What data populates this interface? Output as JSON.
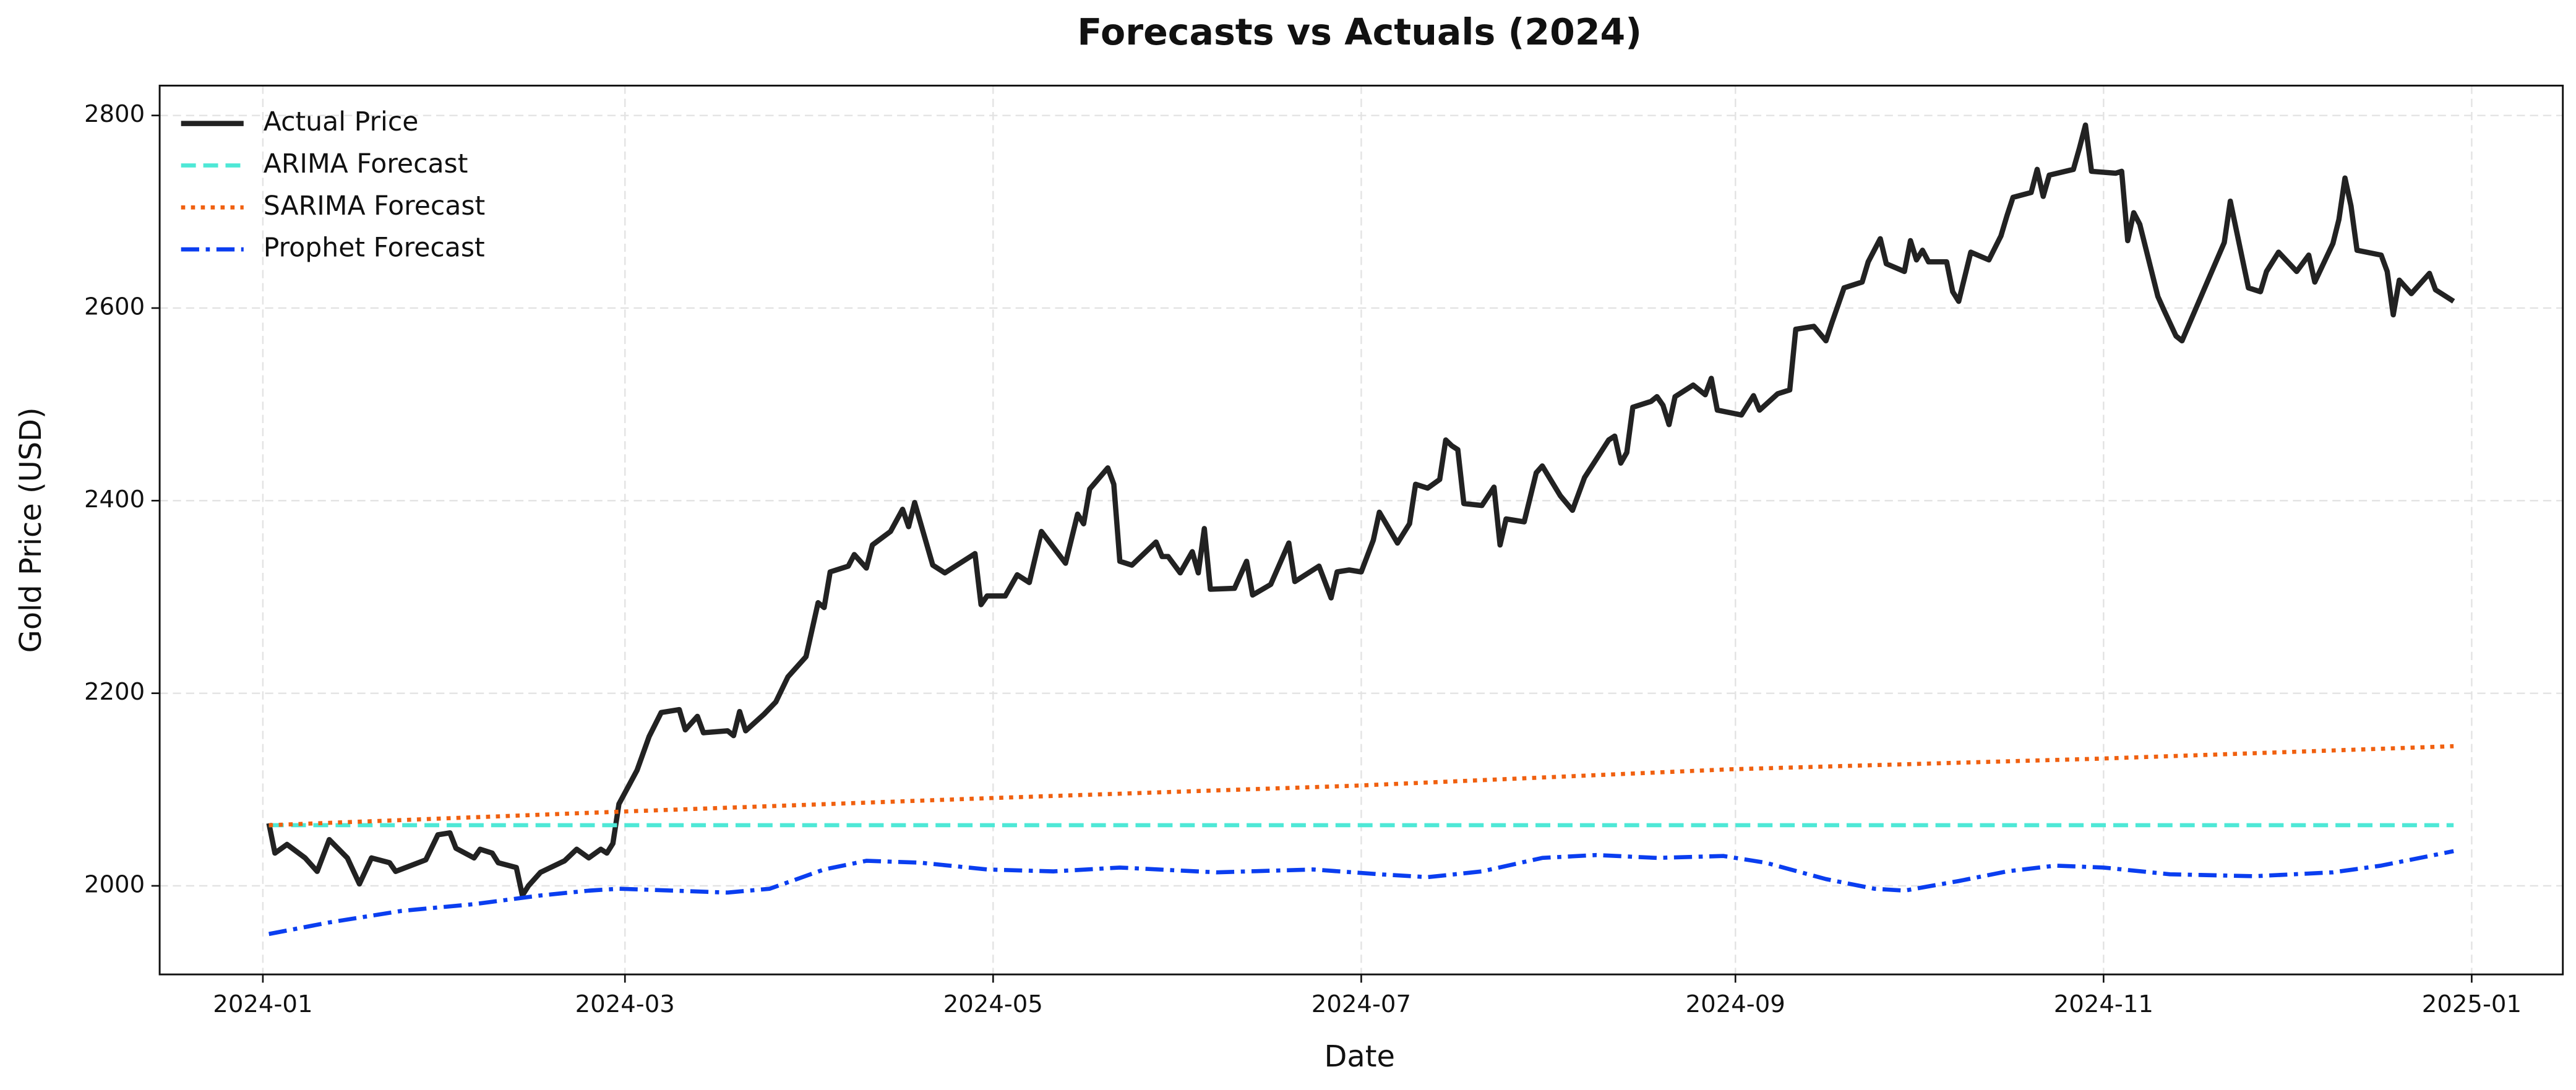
{
  "chart_data": {
    "type": "line",
    "title": "Forecasts vs Actuals (2024)",
    "title_color": "#e8cc26",
    "xlabel": "Date",
    "ylabel": "Gold Price (USD)",
    "grid": true,
    "legend": "upper left",
    "ylim": [
      1908,
      2831
    ],
    "yticks": [
      2000,
      2200,
      2400,
      2600,
      2800
    ],
    "xticks": [
      "2024-01",
      "2024-03",
      "2024-05",
      "2024-07",
      "2024-09",
      "2024-11",
      "2025-01"
    ],
    "series": [
      {
        "name": "Actual Price",
        "color": "#222222",
        "linestyle": "solid",
        "x": [
          "2024-01-02",
          "2024-01-03",
          "2024-01-05",
          "2024-01-08",
          "2024-01-10",
          "2024-01-12",
          "2024-01-15",
          "2024-01-17",
          "2024-01-19",
          "2024-01-22",
          "2024-01-23",
          "2024-01-28",
          "2024-01-30",
          "2024-02-01",
          "2024-02-02",
          "2024-02-05",
          "2024-02-06",
          "2024-02-08",
          "2024-02-09",
          "2024-02-12",
          "2024-02-13",
          "2024-02-14",
          "2024-02-16",
          "2024-02-20",
          "2024-02-22",
          "2024-02-24",
          "2024-02-26",
          "2024-02-27",
          "2024-02-28",
          "2024-02-29",
          "2024-03-03",
          "2024-03-05",
          "2024-03-07",
          "2024-03-10",
          "2024-03-11",
          "2024-03-13",
          "2024-03-14",
          "2024-03-18",
          "2024-03-19",
          "2024-03-20",
          "2024-03-21",
          "2024-03-24",
          "2024-03-26",
          "2024-03-28",
          "2024-03-31",
          "2024-04-02",
          "2024-04-03",
          "2024-04-04",
          "2024-04-07",
          "2024-04-08",
          "2024-04-10",
          "2024-04-11",
          "2024-04-14",
          "2024-04-16",
          "2024-04-17",
          "2024-04-18",
          "2024-04-21",
          "2024-04-23",
          "2024-04-28",
          "2024-04-29",
          "2024-04-30",
          "2024-05-03",
          "2024-05-05",
          "2024-05-07",
          "2024-05-09",
          "2024-05-13",
          "2024-05-15",
          "2024-05-16",
          "2024-05-17",
          "2024-05-20",
          "2024-05-21",
          "2024-05-22",
          "2024-05-24",
          "2024-05-28",
          "2024-05-29",
          "2024-05-30",
          "2024-06-01",
          "2024-06-03",
          "2024-06-04",
          "2024-06-05",
          "2024-06-06",
          "2024-06-10",
          "2024-06-12",
          "2024-06-13",
          "2024-06-16",
          "2024-06-19",
          "2024-06-20",
          "2024-06-24",
          "2024-06-26",
          "2024-06-27",
          "2024-06-29",
          "2024-07-01",
          "2024-07-03",
          "2024-07-04",
          "2024-07-07",
          "2024-07-09",
          "2024-07-10",
          "2024-07-12",
          "2024-07-14",
          "2024-07-15",
          "2024-07-16",
          "2024-07-17",
          "2024-07-18",
          "2024-07-21",
          "2024-07-23",
          "2024-07-24",
          "2024-07-25",
          "2024-07-28",
          "2024-07-30",
          "2024-07-31",
          "2024-08-03",
          "2024-08-05",
          "2024-08-07",
          "2024-08-11",
          "2024-08-12",
          "2024-08-13",
          "2024-08-14",
          "2024-08-15",
          "2024-08-18",
          "2024-08-19",
          "2024-08-20",
          "2024-08-21",
          "2024-08-22",
          "2024-08-25",
          "2024-08-27",
          "2024-08-28",
          "2024-08-29",
          "2024-09-02",
          "2024-09-04",
          "2024-09-05",
          "2024-09-08",
          "2024-09-10",
          "2024-09-11",
          "2024-09-14",
          "2024-09-16",
          "2024-09-17",
          "2024-09-19",
          "2024-09-22",
          "2024-09-23",
          "2024-09-25",
          "2024-09-26",
          "2024-09-29",
          "2024-09-30",
          "2024-10-01",
          "2024-10-02",
          "2024-10-03",
          "2024-10-06",
          "2024-10-07",
          "2024-10-08",
          "2024-10-10",
          "2024-10-13",
          "2024-10-15",
          "2024-10-16",
          "2024-10-17",
          "2024-10-20",
          "2024-10-21",
          "2024-10-22",
          "2024-10-23",
          "2024-10-27",
          "2024-10-28",
          "2024-10-29",
          "2024-10-30",
          "2024-11-03",
          "2024-11-04",
          "2024-11-05",
          "2024-11-06",
          "2024-11-07",
          "2024-11-10",
          "2024-11-11",
          "2024-11-13",
          "2024-11-14",
          "2024-11-19",
          "2024-11-21",
          "2024-11-22",
          "2024-11-25",
          "2024-11-27",
          "2024-11-28",
          "2024-11-30",
          "2024-12-03",
          "2024-12-05",
          "2024-12-06",
          "2024-12-09",
          "2024-12-10",
          "2024-12-11",
          "2024-12-12",
          "2024-12-13",
          "2024-12-17",
          "2024-12-18",
          "2024-12-19",
          "2024-12-20",
          "2024-12-22",
          "2024-12-25",
          "2024-12-26",
          "2024-12-29"
        ],
        "values": [
          2065,
          2034,
          2043,
          2029,
          2015,
          2048,
          2029,
          2002,
          2029,
          2024,
          2015,
          2027,
          2053,
          2055,
          2039,
          2029,
          2038,
          2034,
          2024,
          2019,
          1990,
          2000,
          2014,
          2026,
          2038,
          2029,
          2038,
          2034,
          2044,
          2085,
          2120,
          2155,
          2180,
          2183,
          2162,
          2176,
          2159,
          2161,
          2156,
          2181,
          2161,
          2178,
          2191,
          2217,
          2238,
          2294,
          2289,
          2326,
          2332,
          2344,
          2330,
          2354,
          2368,
          2391,
          2373,
          2398,
          2333,
          2325,
          2345,
          2292,
          2301,
          2301,
          2323,
          2315,
          2368,
          2335,
          2386,
          2376,
          2412,
          2434,
          2417,
          2337,
          2333,
          2357,
          2342,
          2342,
          2325,
          2347,
          2325,
          2371,
          2308,
          2309,
          2337,
          2302,
          2313,
          2356,
          2316,
          2332,
          2299,
          2326,
          2328,
          2326,
          2359,
          2388,
          2356,
          2376,
          2417,
          2413,
          2422,
          2463,
          2457,
          2453,
          2397,
          2395,
          2414,
          2354,
          2381,
          2378,
          2429,
          2436,
          2405,
          2390,
          2424,
          2463,
          2467,
          2439,
          2450,
          2497,
          2503,
          2508,
          2499,
          2479,
          2508,
          2520,
          2510,
          2527,
          2494,
          2489,
          2509,
          2494,
          2511,
          2515,
          2578,
          2581,
          2566,
          2585,
          2621,
          2627,
          2648,
          2672,
          2646,
          2638,
          2670,
          2650,
          2660,
          2648,
          2648,
          2617,
          2607,
          2658,
          2650,
          2675,
          2696,
          2715,
          2720,
          2744,
          2716,
          2738,
          2744,
          2766,
          2790,
          2742,
          2740,
          2742,
          2670,
          2699,
          2687,
          2612,
          2598,
          2571,
          2566,
          2639,
          2668,
          2711,
          2621,
          2617,
          2638,
          2658,
          2638,
          2655,
          2627,
          2667,
          2692,
          2735,
          2706,
          2660,
          2655,
          2638,
          2593,
          2629,
          2615,
          2636,
          2619,
          2607
        ]
      },
      {
        "name": "ARIMA Forecast",
        "color": "#4ee8d6",
        "linestyle": "dashed",
        "x": [
          "2024-01-02",
          "2024-12-29"
        ],
        "values": [
          2063,
          2063
        ]
      },
      {
        "name": "SARIMA Forecast",
        "color": "#f0600f",
        "linestyle": "dotted",
        "x": [
          "2024-01-02",
          "2024-02-29",
          "2024-04-30",
          "2024-06-30",
          "2024-08-31",
          "2024-10-31",
          "2024-12-29"
        ],
        "values": [
          2063,
          2077,
          2091,
          2104,
          2121,
          2132,
          2145
        ]
      },
      {
        "name": "Prophet Forecast",
        "color": "#0a3ef0",
        "linestyle": "dashdot",
        "x": [
          "2024-01-02",
          "2024-01-12",
          "2024-01-24",
          "2024-02-05",
          "2024-02-16",
          "2024-02-24",
          "2024-02-29",
          "2024-03-18",
          "2024-03-25",
          "2024-04-03",
          "2024-04-10",
          "2024-04-19",
          "2024-04-30",
          "2024-05-11",
          "2024-05-22",
          "2024-06-07",
          "2024-06-23",
          "2024-07-04",
          "2024-07-12",
          "2024-07-21",
          "2024-07-31",
          "2024-08-09",
          "2024-08-19",
          "2024-08-30",
          "2024-09-06",
          "2024-09-16",
          "2024-09-24",
          "2024-09-29",
          "2024-10-08",
          "2024-10-16",
          "2024-10-24",
          "2024-11-01",
          "2024-11-12",
          "2024-11-26",
          "2024-12-09",
          "2024-12-17",
          "2024-12-29"
        ],
        "values": [
          1950,
          1962,
          1974,
          1981,
          1990,
          1995,
          1997,
          1993,
          1997,
          2017,
          2026,
          2024,
          2017,
          2015,
          2019,
          2014,
          2017,
          2012,
          2009,
          2015,
          2029,
          2032,
          2029,
          2031,
          2024,
          2007,
          1997,
          1995,
          2005,
          2015,
          2021,
          2019,
          2012,
          2010,
          2014,
          2021,
          2036
        ]
      }
    ]
  }
}
